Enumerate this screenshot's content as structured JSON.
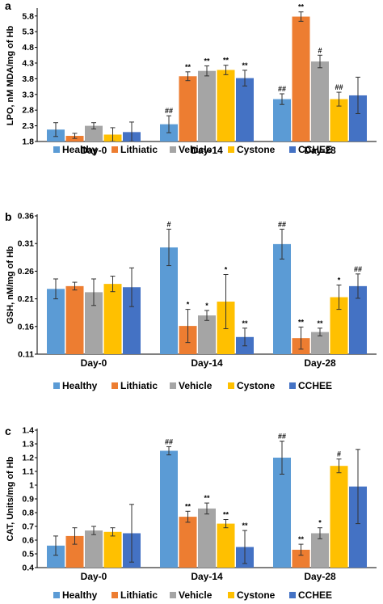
{
  "legend_items": [
    "Healthy",
    "Lithiatic",
    "Vehicle",
    "Cystone",
    "CCHEE"
  ],
  "colors": {
    "Healthy": "#5b9bd5",
    "Lithiatic": "#ed7d31",
    "Vehicle": "#a5a5a5",
    "Cystone": "#ffc000",
    "CCHEE": "#4472c4"
  },
  "chart_data": [
    {
      "panel": "a",
      "type": "bar",
      "ylabel": "LPO, nM MDA/mg of Hb",
      "ylim": [
        1.8,
        6.0
      ],
      "yticks": [
        "1.8",
        "2.3",
        "2.8",
        "3.3",
        "3.8",
        "4.3",
        "4.8",
        "5.3",
        "5.8"
      ],
      "categories": [
        "Day-0",
        "Day-14",
        "Day-28"
      ],
      "legend_position": "bottom",
      "series": [
        {
          "name": "Healthy",
          "values": [
            2.18,
            2.35,
            3.15
          ],
          "errors": [
            0.22,
            0.27,
            0.17
          ],
          "sig": [
            "",
            "##",
            "##"
          ]
        },
        {
          "name": "Lithiatic",
          "values": [
            1.98,
            3.88,
            5.78
          ],
          "errors": [
            0.08,
            0.14,
            0.15
          ],
          "sig": [
            "",
            "**",
            "**"
          ]
        },
        {
          "name": "Vehicle",
          "values": [
            2.3,
            4.05,
            4.35
          ],
          "errors": [
            0.1,
            0.16,
            0.2
          ],
          "sig": [
            "",
            "**",
            "#"
          ]
        },
        {
          "name": "Cystone",
          "values": [
            2.02,
            4.08,
            3.15
          ],
          "errors": [
            0.22,
            0.15,
            0.22
          ],
          "sig": [
            "",
            "**",
            "##"
          ]
        },
        {
          "name": "CCHEE",
          "values": [
            2.1,
            3.82,
            3.27
          ],
          "errors": [
            0.32,
            0.25,
            0.58
          ],
          "sig": [
            "",
            "**",
            ""
          ]
        }
      ]
    },
    {
      "panel": "b",
      "type": "bar",
      "ylabel": "GSH, nM/mg of Hb",
      "ylim": [
        0.11,
        0.36
      ],
      "yticks": [
        "0.11",
        "0.16",
        "0.21",
        "0.26",
        "0.31",
        "0.36"
      ],
      "categories": [
        "Day-0",
        "Day-14",
        "Day-28"
      ],
      "legend_position": "bottom",
      "series": [
        {
          "name": "Healthy",
          "values": [
            0.228,
            0.303,
            0.309
          ],
          "errors": [
            0.018,
            0.033,
            0.027
          ],
          "sig": [
            "",
            "#",
            "##"
          ]
        },
        {
          "name": "Lithiatic",
          "values": [
            0.233,
            0.161,
            0.139
          ],
          "errors": [
            0.007,
            0.03,
            0.02
          ],
          "sig": [
            "",
            "*",
            "**"
          ]
        },
        {
          "name": "Vehicle",
          "values": [
            0.222,
            0.18,
            0.15
          ],
          "errors": [
            0.024,
            0.009,
            0.007
          ],
          "sig": [
            "",
            "*",
            "**"
          ]
        },
        {
          "name": "Cystone",
          "values": [
            0.237,
            0.205,
            0.213
          ],
          "errors": [
            0.014,
            0.049,
            0.022
          ],
          "sig": [
            "",
            "*",
            "*"
          ]
        },
        {
          "name": "CCHEE",
          "values": [
            0.231,
            0.141,
            0.233
          ],
          "errors": [
            0.035,
            0.016,
            0.022
          ],
          "sig": [
            "",
            "**",
            "##"
          ]
        }
      ]
    },
    {
      "panel": "c",
      "type": "bar",
      "ylabel": "CAT, Units/mg of Hb",
      "ylim": [
        0.4,
        1.4
      ],
      "yticks": [
        "0.4",
        "0.5",
        "0.6",
        "0.7",
        "0.8",
        "0.9",
        "1",
        "1.1",
        "1.2",
        "1.3",
        "1.4"
      ],
      "categories": [
        "Day-0",
        "Day-14",
        "Day-28"
      ],
      "legend_position": "bottom",
      "series": [
        {
          "name": "Healthy",
          "values": [
            0.56,
            1.25,
            1.2
          ],
          "errors": [
            0.07,
            0.03,
            0.12
          ],
          "sig": [
            "",
            "##",
            "##"
          ]
        },
        {
          "name": "Lithiatic",
          "values": [
            0.63,
            0.77,
            0.53
          ],
          "errors": [
            0.06,
            0.04,
            0.04
          ],
          "sig": [
            "",
            "**",
            "**"
          ]
        },
        {
          "name": "Vehicle",
          "values": [
            0.67,
            0.83,
            0.65
          ],
          "errors": [
            0.03,
            0.04,
            0.04
          ],
          "sig": [
            "",
            "**",
            "*"
          ]
        },
        {
          "name": "Cystone",
          "values": [
            0.66,
            0.72,
            1.14
          ],
          "errors": [
            0.03,
            0.03,
            0.05
          ],
          "sig": [
            "",
            "**",
            "#"
          ]
        },
        {
          "name": "CCHEE",
          "values": [
            0.65,
            0.55,
            0.99
          ],
          "errors": [
            0.21,
            0.12,
            0.27
          ],
          "sig": [
            "",
            "**",
            ""
          ]
        }
      ]
    }
  ]
}
